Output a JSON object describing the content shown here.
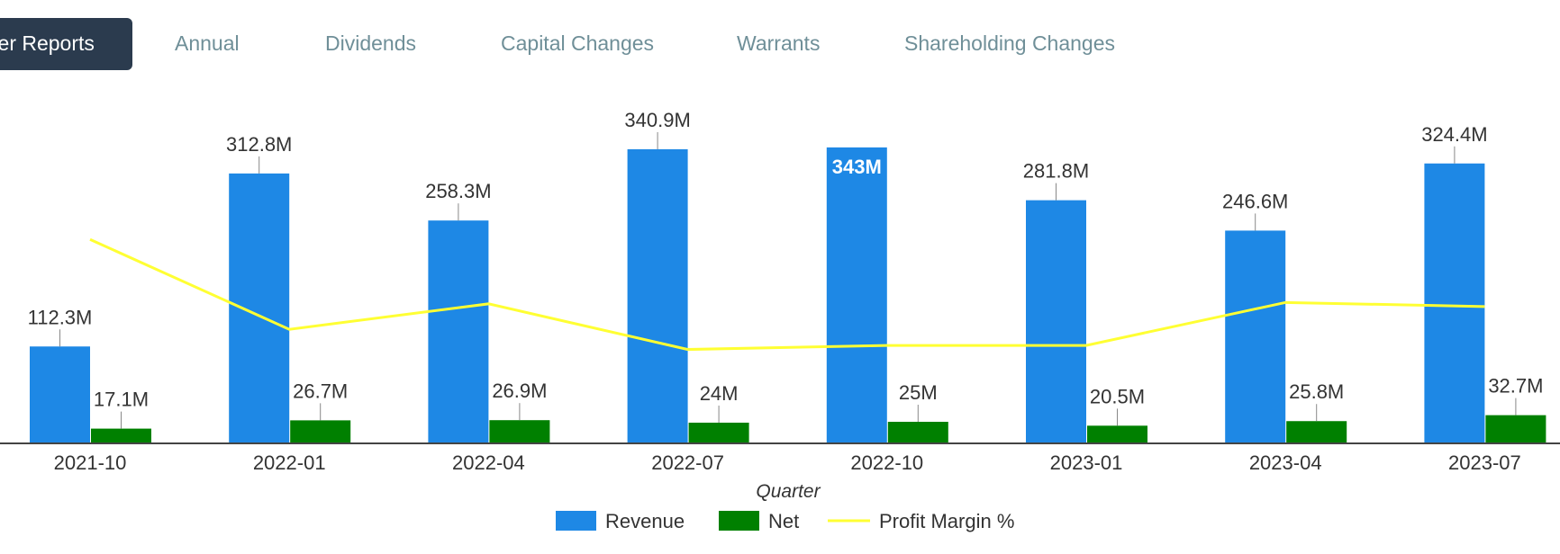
{
  "tabs": [
    {
      "label": "Quarter Reports",
      "active": true
    },
    {
      "label": "Annual",
      "active": false
    },
    {
      "label": "Dividends",
      "active": false
    },
    {
      "label": "Capital Changes",
      "active": false
    },
    {
      "label": "Warrants",
      "active": false
    },
    {
      "label": "Shareholding Changes",
      "active": false
    }
  ],
  "colors": {
    "revenue": "#1e88e5",
    "net": "#008000",
    "margin": "#ffff33",
    "axis": "#444444",
    "label": "#333333",
    "active_tab_bg": "#2b3b4e",
    "tab_text": "#6f8f98"
  },
  "chart_data": {
    "type": "bar",
    "categories": [
      "2021-10",
      "2022-01",
      "2022-04",
      "2022-07",
      "2022-10",
      "2023-01",
      "2023-04",
      "2023-07"
    ],
    "series": [
      {
        "name": "Revenue",
        "values": [
          112.3,
          312.8,
          258.3,
          340.9,
          343,
          281.8,
          246.6,
          324.4
        ],
        "labels": [
          "112.3M",
          "312.8M",
          "258.3M",
          "340.9M",
          "343M",
          "281.8M",
          "246.6M",
          "324.4M"
        ]
      },
      {
        "name": "Net",
        "values": [
          17.1,
          26.7,
          26.9,
          24,
          25,
          20.5,
          25.8,
          32.7
        ],
        "labels": [
          "17.1M",
          "26.7M",
          "26.9M",
          "24M",
          "25M",
          "20.5M",
          "25.8M",
          "32.7M"
        ]
      },
      {
        "name": "Profit Margin %",
        "type": "line",
        "values": [
          15.2,
          8.5,
          10.4,
          7.0,
          7.3,
          7.3,
          10.5,
          10.2
        ]
      }
    ],
    "highlighted_index": 4,
    "xlabel": "Quarter",
    "ylabel": "",
    "ylim": [
      0,
      345
    ],
    "margin_ylim": [
      0,
      25
    ],
    "legend": [
      "Revenue",
      "Net",
      "Profit Margin %"
    ],
    "legend_position": "bottom"
  }
}
